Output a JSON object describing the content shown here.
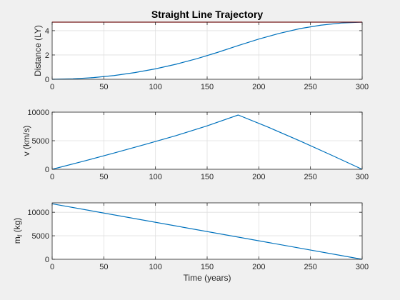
{
  "colors": {
    "figure_bg": "#f0f0f0",
    "axes_bg": "#ffffff",
    "line": "#0072bd",
    "reference_line": "#ff0000",
    "grid": "#dfdfdf",
    "axis": "#262626"
  },
  "chart_data": [
    {
      "type": "line",
      "title": "Straight Line Trajectory",
      "xlabel": "",
      "ylabel": "Distance (LY)",
      "xlim": [
        0,
        300
      ],
      "ylim": [
        0,
        4.7
      ],
      "xticks": [
        0,
        50,
        100,
        150,
        200,
        250,
        300
      ],
      "yticks": [
        0,
        2,
        4
      ],
      "grid": true,
      "series": [
        {
          "color": "#0072bd",
          "x": [
            0,
            20,
            40,
            60,
            80,
            100,
            120,
            140,
            160,
            180,
            200,
            220,
            240,
            260,
            280,
            300
          ],
          "y": [
            0,
            0.04,
            0.14,
            0.31,
            0.55,
            0.86,
            1.24,
            1.69,
            2.21,
            2.77,
            3.31,
            3.78,
            4.17,
            4.45,
            4.63,
            4.7
          ]
        },
        {
          "color": "#ff0000",
          "x": [
            0,
            300
          ],
          "y": [
            4.7,
            4.7
          ]
        }
      ]
    },
    {
      "type": "line",
      "title": "",
      "xlabel": "",
      "ylabel": "v (km/s)",
      "xlim": [
        0,
        300
      ],
      "ylim": [
        0,
        10000
      ],
      "xticks": [
        0,
        50,
        100,
        150,
        200,
        250,
        300
      ],
      "yticks": [
        0,
        5000,
        10000
      ],
      "grid": true,
      "series": [
        {
          "color": "#0072bd",
          "x": [
            0,
            30,
            60,
            90,
            120,
            150,
            180,
            210,
            240,
            270,
            300
          ],
          "y": [
            0,
            1400,
            2850,
            4350,
            5900,
            7600,
            9500,
            7300,
            4950,
            2500,
            0
          ]
        }
      ]
    },
    {
      "type": "line",
      "title": "",
      "xlabel": "Time (years)",
      "ylabel": "m",
      "ylabel_subscript": "f",
      "ylabel_suffix": " (kg)",
      "xlim": [
        0,
        300
      ],
      "ylim": [
        0,
        12000
      ],
      "xticks": [
        0,
        50,
        100,
        150,
        200,
        250,
        300
      ],
      "yticks": [
        0,
        5000,
        10000
      ],
      "grid": true,
      "series": [
        {
          "color": "#0072bd",
          "x": [
            0,
            300
          ],
          "y": [
            11800,
            0
          ]
        }
      ]
    }
  ]
}
